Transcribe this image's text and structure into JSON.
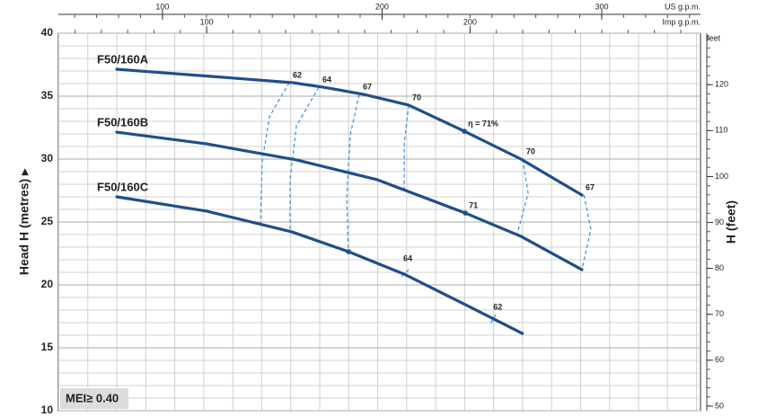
{
  "chart_data": {
    "type": "line",
    "y_label": "Head H (metres) ▸",
    "y2_label": "H (feet)",
    "y2_unit": "feet",
    "x_label": "US g.p.m.",
    "x2_label": "Imp g.p.m.",
    "annotation": "MEI≥ 0.40",
    "xlim": [
      52.6,
      345
    ],
    "xticks": [
      100,
      200,
      300
    ],
    "x2lim": [
      43.7,
      287.5
    ],
    "x2ticks": [
      100,
      200
    ],
    "ylim": [
      10,
      40
    ],
    "yticks": [
      10,
      15,
      20,
      25,
      30,
      35,
      40
    ],
    "y2lim": [
      49,
      131.2
    ],
    "y2ticks": [
      50,
      60,
      70,
      80,
      90,
      100,
      110,
      120
    ],
    "grid": true,
    "grid_x_step": 13.2,
    "grid_y_step": 1,
    "minor_tick_step": 10,
    "y2_minor_step": 2,
    "series": [
      {
        "name": "F50/160A",
        "color": "#1f4e8c",
        "x": [
          79.2,
          120.1,
          159.3,
          173.3,
          191.7,
          212.1,
          237.5,
          263.2,
          291.0
        ],
        "values": [
          37.14,
          36.6,
          36.07,
          35.71,
          35.14,
          34.29,
          32.21,
          30.0,
          27.14
        ]
      },
      {
        "name": "F50/160B",
        "color": "#1f4e8c",
        "x": [
          79.2,
          120.1,
          161.0,
          197.8,
          237.9,
          263.2,
          291.0
        ],
        "values": [
          32.14,
          31.21,
          29.93,
          28.36,
          25.71,
          23.86,
          21.21
        ]
      },
      {
        "name": "F50/160C",
        "color": "#1f4e8c",
        "x": [
          79.2,
          120.1,
          159.0,
          184.7,
          210.0,
          238.7,
          263.9
        ],
        "values": [
          27.0,
          25.86,
          24.21,
          22.64,
          20.86,
          18.36,
          16.14
        ]
      }
    ],
    "efficiency_color": "#3f8fd2",
    "efficiency_lines": [
      {
        "x": [
          157.7,
          148.7,
          145.4,
          144.6
        ],
        "y": [
          36.07,
          33.36,
          29.79,
          24.93
        ]
      },
      {
        "x": [
          171.2,
          161.0,
          158.1,
          158.1
        ],
        "y": [
          35.71,
          32.64,
          28.36,
          24.21
        ]
      },
      {
        "x": [
          189.6,
          185.5,
          183.9,
          184.7
        ],
        "y": [
          35.14,
          31.93,
          26.93,
          22.64
        ]
      },
      {
        "x": [
          212.1,
          210.1,
          210.1
        ],
        "y": [
          34.29,
          31.21,
          27.36
        ]
      },
      {
        "x": [
          264.0,
          266.5,
          261.6
        ],
        "y": [
          30.0,
          27.29,
          24.07
        ]
      },
      {
        "x": [
          291.9,
          295.1,
          291.0
        ],
        "y": [
          27.14,
          24.43,
          21.21
        ]
      },
      {
        "x": [
          212.1,
          208.0
        ],
        "y": [
          21.21,
          20.5
        ]
      },
      {
        "x": [
          251.8,
          249.0
        ],
        "y": [
          17.64,
          16.79
        ]
      }
    ],
    "efficiency_labels": [
      {
        "label": "62",
        "x": 157.7,
        "y": 36.07
      },
      {
        "label": "64",
        "x": 171.2,
        "y": 35.71
      },
      {
        "label": "67",
        "x": 189.6,
        "y": 35.14
      },
      {
        "label": "70",
        "x": 212.1,
        "y": 34.29
      },
      {
        "label": "η = 71%",
        "x": 237.5,
        "y": 32.21
      },
      {
        "label": "70",
        "x": 264.0,
        "y": 30.0
      },
      {
        "label": "67",
        "x": 291.0,
        "y": 27.14
      },
      {
        "label": "71",
        "x": 237.9,
        "y": 25.71
      },
      {
        "label": "64",
        "x": 208.0,
        "y": 21.5
      },
      {
        "label": "62",
        "x": 249.0,
        "y": 17.64
      }
    ],
    "markers": {
      "x": [
        237.5,
        237.9,
        184.7
      ],
      "y": [
        32.21,
        25.71,
        22.64
      ]
    }
  }
}
